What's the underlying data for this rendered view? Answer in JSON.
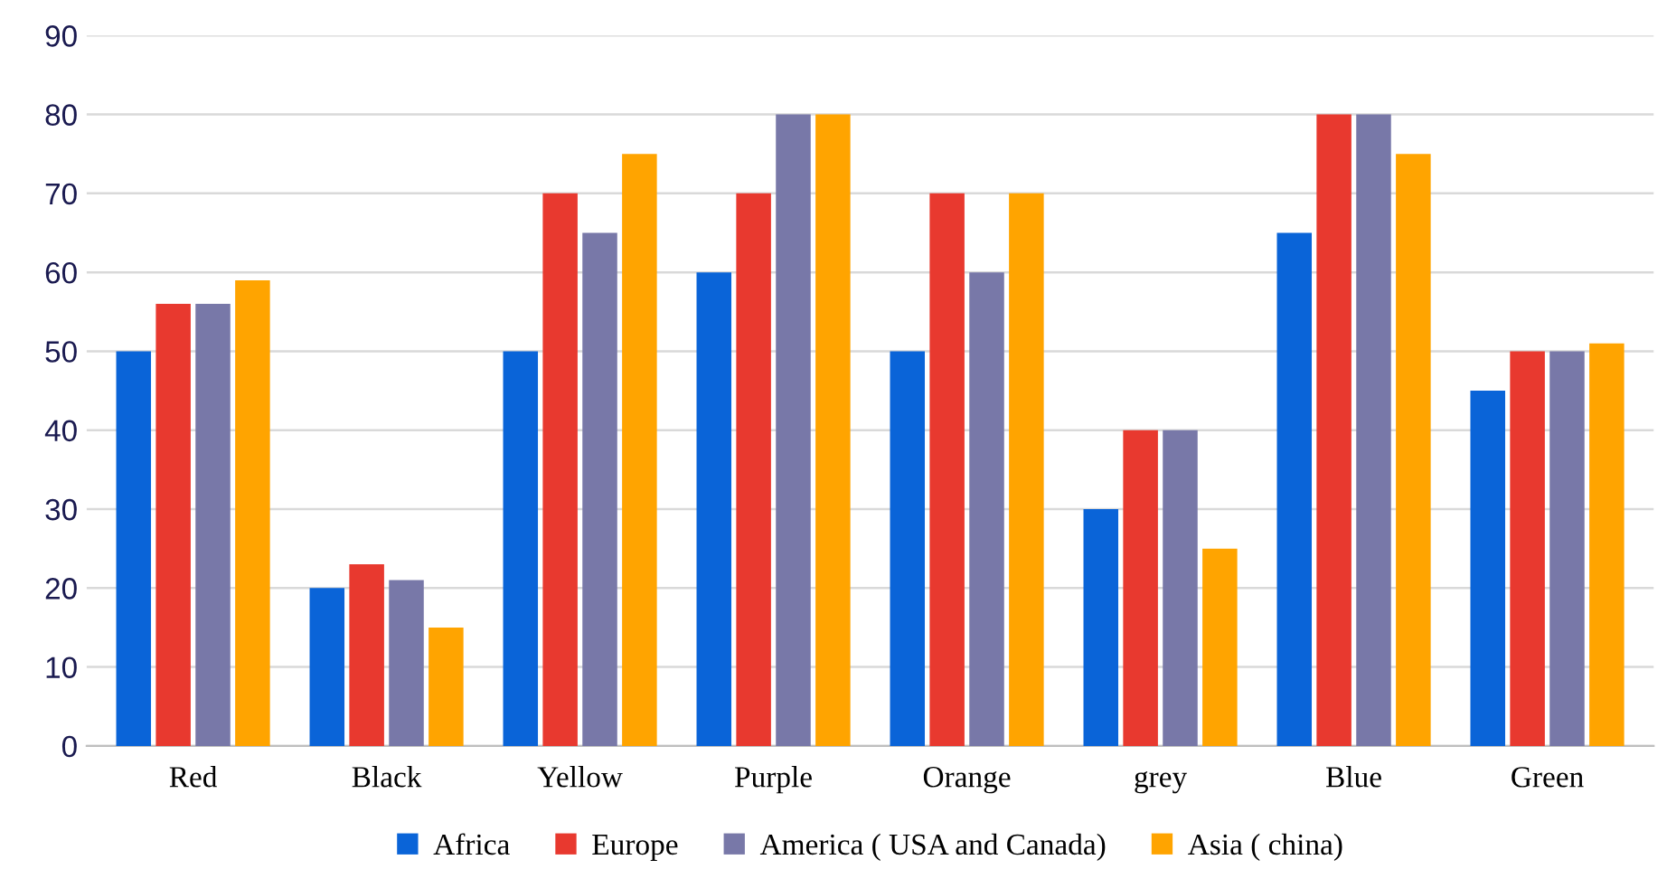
{
  "chart_data": {
    "type": "bar",
    "categories": [
      "Red",
      "Black",
      "Yellow",
      "Purple",
      "Orange",
      "grey",
      "Blue",
      "Green"
    ],
    "series": [
      {
        "name": "Africa",
        "color": "#0a64d8",
        "values": [
          50,
          20,
          50,
          60,
          50,
          30,
          65,
          45
        ]
      },
      {
        "name": "Europe",
        "color": "#e8392f",
        "values": [
          56,
          23,
          70,
          70,
          70,
          40,
          80,
          50
        ]
      },
      {
        "name": "America ( USA and Canada)",
        "color": "#7878a8",
        "values": [
          56,
          21,
          65,
          80,
          60,
          40,
          80,
          50
        ]
      },
      {
        "name": "Asia ( china)",
        "color": "#ffa400",
        "values": [
          59,
          15,
          75,
          80,
          70,
          25,
          75,
          51
        ]
      }
    ],
    "ylim": [
      0,
      90
    ],
    "yticks": [
      0,
      10,
      20,
      30,
      40,
      50,
      60,
      70,
      80,
      90
    ],
    "grid": "y",
    "legend": "bottom"
  }
}
